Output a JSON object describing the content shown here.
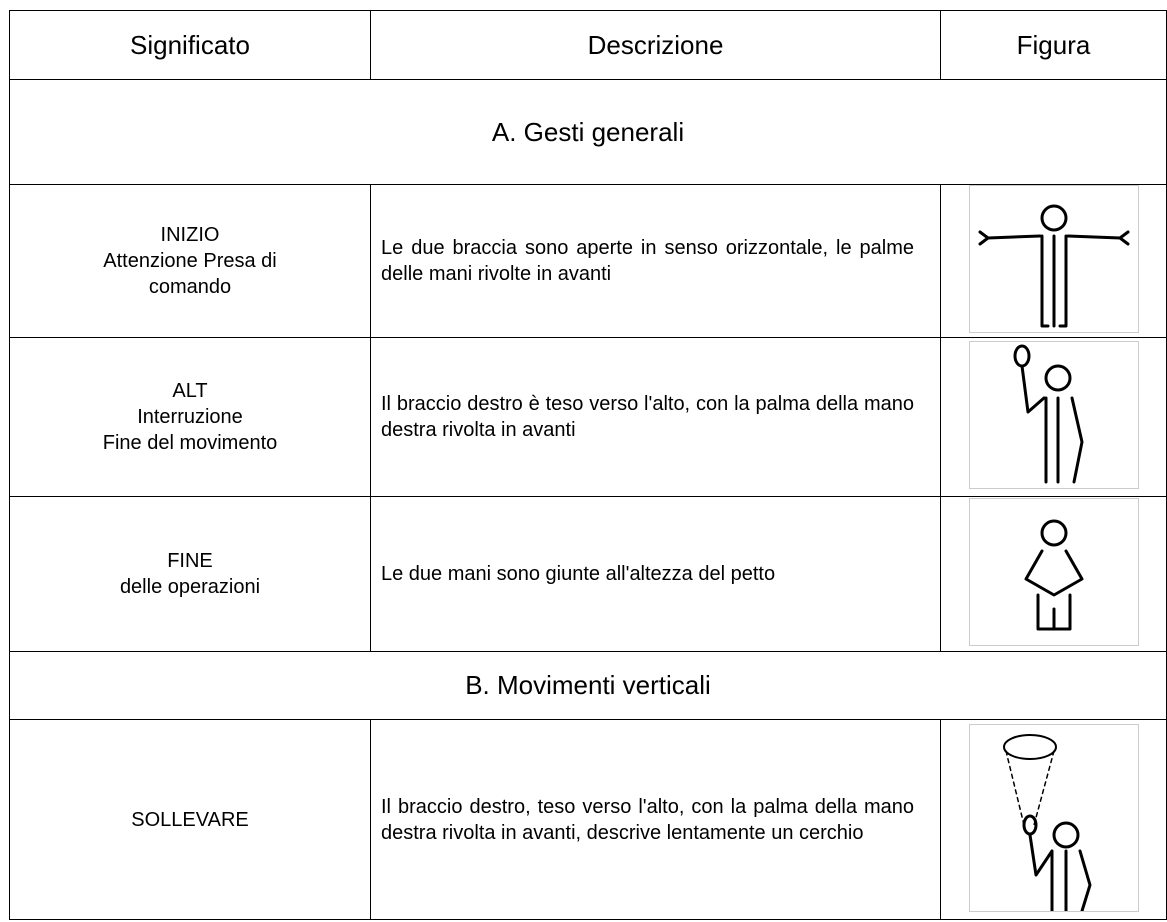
{
  "table": {
    "header": [
      "Significato",
      "Descrizione",
      "Figura"
    ],
    "sections": [
      {
        "title": "A. Gesti generali",
        "rows": [
          {
            "meaning": [
              "INIZIO",
              "Attenzione Presa di",
              "comando"
            ],
            "description": "Le due braccia sono aperte in senso orizzontale, le palme delle mani rivolte in avanti"
          },
          {
            "meaning": [
              "ALT",
              "Interruzione",
              "Fine del movimento"
            ],
            "description": "Il braccio destro è teso verso l'alto, con la palma della mano destra rivolta in avanti"
          },
          {
            "meaning": [
              "FINE",
              "delle operazioni"
            ],
            "description": "Le due mani sono giunte all'altezza del petto"
          }
        ]
      },
      {
        "title": "B. Movimenti verticali",
        "rows": [
          {
            "meaning": [
              "SOLLEVARE"
            ],
            "description": "Il braccio destro, teso verso l'alto, con la palma della mano destra rivolta in avanti, descrive lentamente un cerchio"
          }
        ]
      }
    ]
  }
}
